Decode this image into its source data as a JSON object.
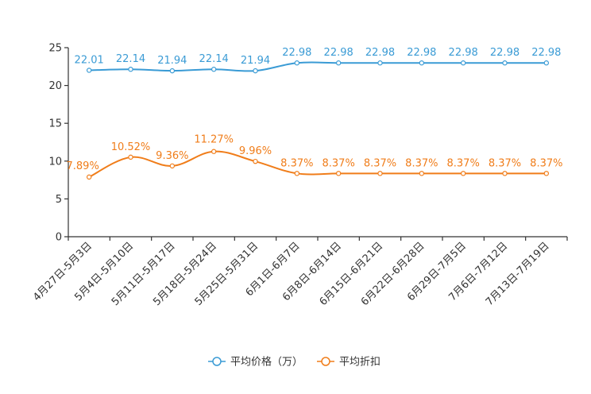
{
  "chart_data": {
    "type": "line",
    "title": "",
    "xlabel": "",
    "ylabel": "",
    "ylim": [
      0,
      25
    ],
    "yticks": [
      0,
      5,
      10,
      15,
      20,
      25
    ],
    "grid": false,
    "legend_position": "bottom-center",
    "categories": [
      "4月27日-5月3日",
      "5月4日-5月10日",
      "5月11日-5月17日",
      "5月18日-5月24日",
      "5月25日-5月31日",
      "6月1日-6月7日",
      "6月8日-6月14日",
      "6月15日-6月21日",
      "6月22日-6月28日",
      "6月29日-7月5日",
      "7月6日-7月12日",
      "7月13日-7月19日"
    ],
    "series": [
      {
        "name": "平均价格（万）",
        "color": "#3a9bd5",
        "values": [
          22.01,
          22.14,
          21.94,
          22.14,
          21.94,
          22.98,
          22.98,
          22.98,
          22.98,
          22.98,
          22.98,
          22.98
        ],
        "labels": [
          "22.01",
          "22.14",
          "21.94",
          "22.14",
          "21.94",
          "22.98",
          "22.98",
          "22.98",
          "22.98",
          "22.98",
          "22.98",
          "22.98"
        ]
      },
      {
        "name": "平均折扣",
        "color": "#f07d1a",
        "values": [
          7.89,
          10.52,
          9.36,
          11.27,
          9.96,
          8.37,
          8.37,
          8.37,
          8.37,
          8.37,
          8.37,
          8.37
        ],
        "labels": [
          "7.89%",
          "10.52%",
          "9.36%",
          "11.27%",
          "9.96%",
          "8.37%",
          "8.37%",
          "8.37%",
          "8.37%",
          "8.37%",
          "8.37%",
          "8.37%"
        ]
      }
    ]
  }
}
